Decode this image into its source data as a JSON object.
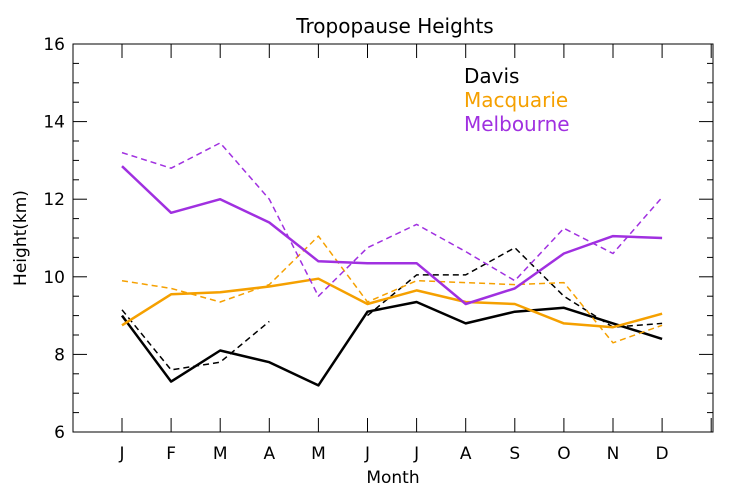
{
  "chart_data": {
    "type": "line",
    "title": "Tropopause Heights",
    "xlabel": "Month",
    "ylabel": "Height(km)",
    "ylim": [
      6,
      16
    ],
    "yticks": [
      "6",
      "8",
      "10",
      "12",
      "14",
      "16"
    ],
    "categories": [
      "J",
      "F",
      "M",
      "A",
      "M",
      "J",
      "J",
      "A",
      "S",
      "O",
      "N",
      "D"
    ],
    "grid": false,
    "legend_position": "top-right",
    "series": [
      {
        "name": "Davis",
        "color": "#000000",
        "style": "solid",
        "values": [
          9.0,
          7.3,
          8.1,
          7.8,
          7.2,
          9.1,
          9.35,
          8.8,
          9.1,
          9.2,
          8.8,
          8.4
        ]
      },
      {
        "name": "Davis",
        "color": "#000000",
        "style": "dashed",
        "values": [
          9.15,
          7.6,
          7.8,
          8.85,
          null,
          9.0,
          10.05,
          10.05,
          10.75,
          9.5,
          8.7,
          8.8
        ]
      },
      {
        "name": "Macquarie",
        "color": "#f5a000",
        "style": "solid",
        "values": [
          8.75,
          9.55,
          9.6,
          9.75,
          9.95,
          9.3,
          9.65,
          9.35,
          9.3,
          8.8,
          8.7,
          9.05
        ]
      },
      {
        "name": "Macquarie",
        "color": "#f5a000",
        "style": "dashed",
        "values": [
          9.9,
          9.7,
          9.35,
          9.8,
          11.05,
          9.35,
          9.9,
          9.85,
          9.8,
          9.85,
          8.3,
          8.75
        ]
      },
      {
        "name": "Melbourne",
        "color": "#a030e0",
        "style": "solid",
        "values": [
          12.85,
          11.65,
          12.0,
          11.4,
          10.4,
          10.35,
          10.35,
          9.3,
          9.7,
          10.6,
          11.05,
          11.0
        ]
      },
      {
        "name": "Melbourne",
        "color": "#a030e0",
        "style": "dashed",
        "values": [
          13.2,
          12.8,
          13.45,
          12.0,
          9.5,
          10.75,
          11.35,
          10.65,
          9.9,
          11.25,
          10.6,
          12.05
        ]
      }
    ],
    "legend": [
      {
        "label": "Davis",
        "color": "#000000"
      },
      {
        "label": "Macquarie",
        "color": "#f5a000"
      },
      {
        "label": "Melbourne",
        "color": "#a030e0"
      }
    ]
  }
}
